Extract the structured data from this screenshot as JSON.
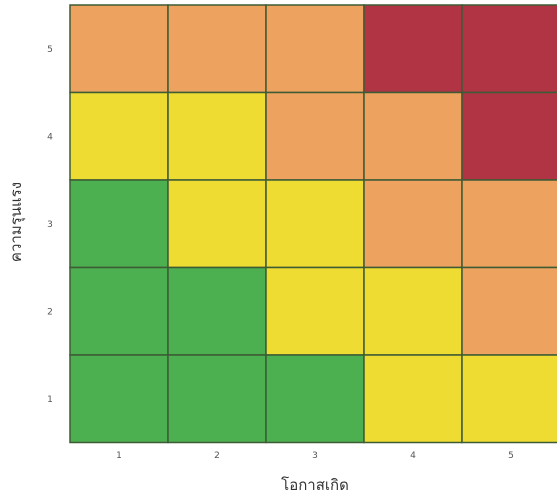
{
  "chart_data": {
    "type": "heatmap",
    "title": "",
    "xlabel": "โอกาสเกิด",
    "ylabel": "ความรุนแรง",
    "x_categories": [
      "1",
      "2",
      "3",
      "4",
      "5"
    ],
    "y_categories": [
      "1",
      "2",
      "3",
      "4",
      "5"
    ],
    "cells": [
      {
        "x": 1,
        "y": 5,
        "level": "high"
      },
      {
        "x": 2,
        "y": 5,
        "level": "high"
      },
      {
        "x": 3,
        "y": 5,
        "level": "high"
      },
      {
        "x": 4,
        "y": 5,
        "level": "extreme"
      },
      {
        "x": 5,
        "y": 5,
        "level": "extreme"
      },
      {
        "x": 1,
        "y": 4,
        "level": "medium"
      },
      {
        "x": 2,
        "y": 4,
        "level": "medium"
      },
      {
        "x": 3,
        "y": 4,
        "level": "high"
      },
      {
        "x": 4,
        "y": 4,
        "level": "high"
      },
      {
        "x": 5,
        "y": 4,
        "level": "extreme"
      },
      {
        "x": 1,
        "y": 3,
        "level": "low"
      },
      {
        "x": 2,
        "y": 3,
        "level": "medium"
      },
      {
        "x": 3,
        "y": 3,
        "level": "medium"
      },
      {
        "x": 4,
        "y": 3,
        "level": "high"
      },
      {
        "x": 5,
        "y": 3,
        "level": "high"
      },
      {
        "x": 1,
        "y": 2,
        "level": "low"
      },
      {
        "x": 2,
        "y": 2,
        "level": "low"
      },
      {
        "x": 3,
        "y": 2,
        "level": "medium"
      },
      {
        "x": 4,
        "y": 2,
        "level": "medium"
      },
      {
        "x": 5,
        "y": 2,
        "level": "high"
      },
      {
        "x": 1,
        "y": 1,
        "level": "low"
      },
      {
        "x": 2,
        "y": 1,
        "level": "low"
      },
      {
        "x": 3,
        "y": 1,
        "level": "low"
      },
      {
        "x": 4,
        "y": 1,
        "level": "medium"
      },
      {
        "x": 5,
        "y": 1,
        "level": "medium"
      }
    ],
    "level_colors": {
      "low": "#4caf50",
      "medium": "#eedc33",
      "high": "#eda35f",
      "extreme": "#b03444"
    },
    "grid_line_color": "#3d5b34"
  }
}
